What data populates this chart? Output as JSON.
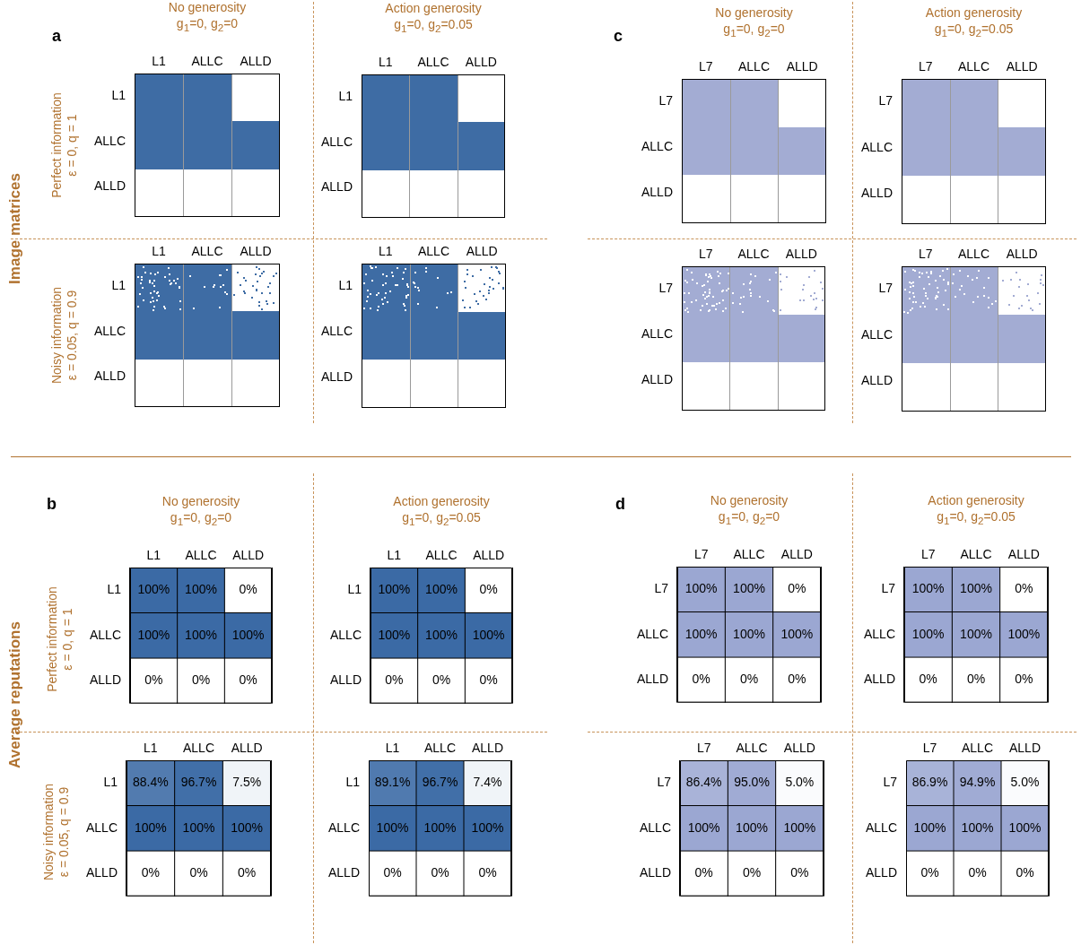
{
  "chart_data": [
    {
      "type": "other",
      "title": "No generosity",
      "subtitle": "g$_{1}$=0,  g$_{2}$=0",
      "ylabel": "Perfect information\nε = 0, q = 1",
      "annotations": [
        "a",
        "Image matrices"
      ],
      "categories": [
        "L1",
        "ALLC",
        "ALLD"
      ],
      "y_categories": [
        "L1",
        "ALLC",
        "ALLD"
      ],
      "color": "#3e6ca4"
    },
    {
      "type": "other",
      "title": "Action generosity",
      "subtitle": "g$_{1}$=0,  g$_{2}$=0.05",
      "categories": [
        "L1",
        "ALLC",
        "ALLD"
      ],
      "y_categories": [
        "L1",
        "ALLC",
        "ALLD"
      ],
      "color": "#3e6ca4"
    },
    {
      "type": "other",
      "title": "No generosity",
      "subtitle": "g$_{1}$=0,  g$_{2}$=0",
      "annotations": [
        "c"
      ],
      "categories": [
        "L7",
        "ALLC",
        "ALLD"
      ],
      "y_categories": [
        "L7",
        "ALLC",
        "ALLD"
      ],
      "color": "#a3acd3"
    },
    {
      "type": "other",
      "title": "Action generosity",
      "subtitle": "g$_{1}$=0,  g$_{2}$=0.05",
      "categories": [
        "L7",
        "ALLC",
        "ALLD"
      ],
      "y_categories": [
        "L7",
        "ALLC",
        "ALLD"
      ],
      "color": "#a3acd3"
    },
    {
      "type": "other",
      "ylabel": "Noisy information\nε = 0.05, q = 0.9",
      "categories": [
        "L1",
        "ALLC",
        "ALLD"
      ],
      "y_categories": [
        "L1",
        "ALLC",
        "ALLD"
      ],
      "color": "#3e6ca4"
    },
    {
      "type": "other",
      "categories": [
        "L1",
        "ALLC",
        "ALLD"
      ],
      "y_categories": [
        "L1",
        "ALLC",
        "ALLD"
      ],
      "color": "#3e6ca4"
    },
    {
      "type": "other",
      "categories": [
        "L7",
        "ALLC",
        "ALLD"
      ],
      "y_categories": [
        "L7",
        "ALLC",
        "ALLD"
      ],
      "color": "#a3acd3"
    },
    {
      "type": "other",
      "categories": [
        "L7",
        "ALLC",
        "ALLD"
      ],
      "y_categories": [
        "L7",
        "ALLC",
        "ALLD"
      ],
      "color": "#a3acd3"
    },
    {
      "type": "heatmap",
      "title": "No generosity",
      "subtitle": "g$_{1}$=0,  g$_{2}$=0",
      "ylabel": "Perfect information\nε = 0, q = 1",
      "annotations": [
        "b",
        "Average reputations"
      ],
      "categories": [
        "L1",
        "ALLC",
        "ALLD"
      ],
      "y_categories": [
        "L1",
        "ALLC",
        "ALLD"
      ],
      "cells": [
        [
          100,
          100,
          0
        ],
        [
          100,
          100,
          100
        ],
        [
          0,
          0,
          0
        ]
      ],
      "cell_labels": [
        [
          "100%",
          "100%",
          "0%"
        ],
        [
          "100%",
          "100%",
          "100%"
        ],
        [
          "0%",
          "0%",
          "0%"
        ]
      ],
      "color": "#3b6aa5",
      "grid": true
    },
    {
      "type": "heatmap",
      "title": "Action generosity",
      "subtitle": "g$_{1}$=0,  g$_{2}$=0.05",
      "categories": [
        "L1",
        "ALLC",
        "ALLD"
      ],
      "y_categories": [
        "L1",
        "ALLC",
        "ALLD"
      ],
      "cells": [
        [
          100,
          100,
          0
        ],
        [
          100,
          100,
          100
        ],
        [
          0,
          0,
          0
        ]
      ],
      "cell_labels": [
        [
          "100%",
          "100%",
          "0%"
        ],
        [
          "100%",
          "100%",
          "100%"
        ],
        [
          "0%",
          "0%",
          "0%"
        ]
      ],
      "color": "#3b6aa5",
      "grid": true
    },
    {
      "type": "heatmap",
      "title": "No generosity",
      "subtitle": "g$_{1}$=0,  g$_{2}$=0",
      "annotations": [
        "d"
      ],
      "categories": [
        "L7",
        "ALLC",
        "ALLD"
      ],
      "y_categories": [
        "L7",
        "ALLC",
        "ALLD"
      ],
      "cells": [
        [
          100,
          100,
          0
        ],
        [
          100,
          100,
          100
        ],
        [
          0,
          0,
          0
        ]
      ],
      "cell_labels": [
        [
          "100%",
          "100%",
          "0%"
        ],
        [
          "100%",
          "100%",
          "100%"
        ],
        [
          "0%",
          "0%",
          "0%"
        ]
      ],
      "color": "#9ba7d2",
      "grid": true
    },
    {
      "type": "heatmap",
      "title": "Action generosity",
      "subtitle": "g$_{1}$=0,  g$_{2}$=0.05",
      "categories": [
        "L7",
        "ALLC",
        "ALLD"
      ],
      "y_categories": [
        "L7",
        "ALLC",
        "ALLD"
      ],
      "cells": [
        [
          100,
          100,
          0
        ],
        [
          100,
          100,
          100
        ],
        [
          0,
          0,
          0
        ]
      ],
      "cell_labels": [
        [
          "100%",
          "100%",
          "0%"
        ],
        [
          "100%",
          "100%",
          "100%"
        ],
        [
          "0%",
          "0%",
          "0%"
        ]
      ],
      "color": "#9ba7d2",
      "grid": true
    },
    {
      "type": "heatmap",
      "ylabel": "Noisy information\nε = 0.05, q = 0.9",
      "categories": [
        "L1",
        "ALLC",
        "ALLD"
      ],
      "y_categories": [
        "L1",
        "ALLC",
        "ALLD"
      ],
      "cells": [
        [
          88.4,
          96.7,
          7.5
        ],
        [
          100,
          100,
          100
        ],
        [
          0,
          0,
          0
        ]
      ],
      "cell_labels": [
        [
          "88.4%",
          "96.7%",
          "7.5%"
        ],
        [
          "100%",
          "100%",
          "100%"
        ],
        [
          "0%",
          "0%",
          "0%"
        ]
      ],
      "color": "#3b6aa5",
      "grid": true
    },
    {
      "type": "heatmap",
      "categories": [
        "L1",
        "ALLC",
        "ALLD"
      ],
      "y_categories": [
        "L1",
        "ALLC",
        "ALLD"
      ],
      "cells": [
        [
          89.1,
          96.7,
          7.4
        ],
        [
          100,
          100,
          100
        ],
        [
          0,
          0,
          0
        ]
      ],
      "cell_labels": [
        [
          "89.1%",
          "96.7%",
          "7.4%"
        ],
        [
          "100%",
          "100%",
          "100%"
        ],
        [
          "0%",
          "0%",
          "0%"
        ]
      ],
      "color": "#3b6aa5",
      "grid": true
    },
    {
      "type": "heatmap",
      "categories": [
        "L7",
        "ALLC",
        "ALLD"
      ],
      "y_categories": [
        "L7",
        "ALLC",
        "ALLD"
      ],
      "cells": [
        [
          86.4,
          95.0,
          5.0
        ],
        [
          100,
          100,
          100
        ],
        [
          0,
          0,
          0
        ]
      ],
      "cell_labels": [
        [
          "86.4%",
          "95.0%",
          "5.0%"
        ],
        [
          "100%",
          "100%",
          "100%"
        ],
        [
          "0%",
          "0%",
          "0%"
        ]
      ],
      "color": "#9ba7d2",
      "grid": true
    },
    {
      "type": "heatmap",
      "categories": [
        "L7",
        "ALLC",
        "ALLD"
      ],
      "y_categories": [
        "L7",
        "ALLC",
        "ALLD"
      ],
      "cells": [
        [
          86.9,
          94.9,
          5.0
        ],
        [
          100,
          100,
          100
        ],
        [
          0,
          0,
          0
        ]
      ],
      "cell_labels": [
        [
          "86.9%",
          "94.9%",
          "5.0%"
        ],
        [
          "100%",
          "100%",
          "100%"
        ],
        [
          "0%",
          "0%",
          "0%"
        ]
      ],
      "color": "#9ba7d2",
      "grid": true
    }
  ]
}
